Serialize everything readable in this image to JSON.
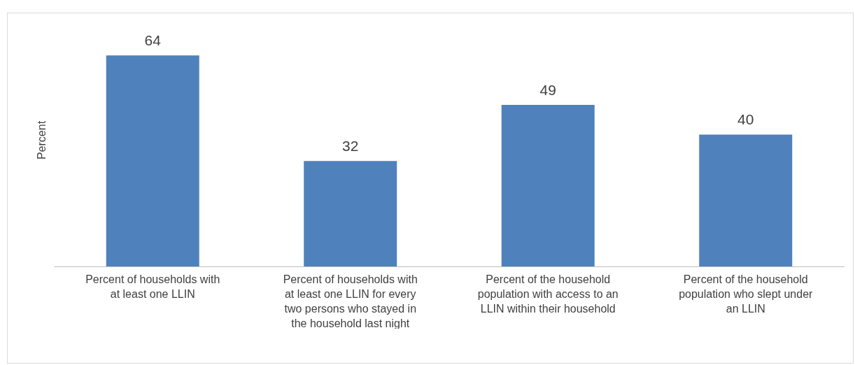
{
  "chart_data": {
    "type": "bar",
    "ylabel": "Percent",
    "categories": [
      "Percent of households with at least one LLIN",
      "Percent of households with at least one LLIN for every two persons who stayed in the household last night",
      "Percent of the household population with access to an LLIN within their household",
      "Percent of the household population who slept under an LLIN"
    ],
    "values": [
      64,
      32,
      49,
      40
    ],
    "color": "#4f81bd",
    "data_labels": true
  }
}
